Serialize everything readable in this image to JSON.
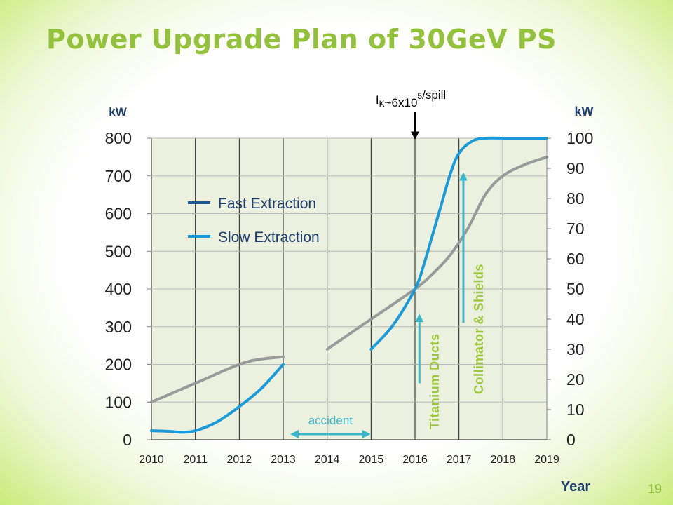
{
  "slide": {
    "title": "Power Upgrade Plan of 30GeV PS",
    "page_number": "19"
  },
  "chart_data": {
    "type": "line",
    "title": "",
    "xlabel": "Year",
    "ylabel_left": "kW",
    "ylabel_right": "kW",
    "x_ticks": [
      "2010",
      "2011",
      "2012",
      "2013",
      "2014",
      "2015",
      "2016",
      "2017",
      "2018",
      "2019"
    ],
    "ylim_left": [
      0,
      800
    ],
    "ylim_right": [
      0,
      100
    ],
    "y_ticks_left": [
      "0",
      "100",
      "200",
      "300",
      "400",
      "500",
      "600",
      "700",
      "800"
    ],
    "y_ticks_right": [
      "0",
      "10",
      "20",
      "30",
      "40",
      "50",
      "60",
      "70",
      "80",
      "90",
      "100"
    ],
    "grid": true,
    "plot_background": "#ebf1de",
    "legend": {
      "placement": "top-left",
      "entries": [
        {
          "label": "Fast Extraction",
          "color": "#1f5b99"
        },
        {
          "label": "Slow Extraction",
          "color": "#1a9ad9"
        }
      ]
    },
    "series": [
      {
        "name": "Fast Extraction",
        "axis": "left",
        "color": "#9a9a9a",
        "segments": [
          [
            [
              2010,
              100
            ],
            [
              2011,
              150
            ],
            [
              2012,
              200
            ],
            [
              2012.5,
              214
            ],
            [
              2013,
              220
            ]
          ],
          [
            [
              2014,
              240
            ],
            [
              2015,
              320
            ],
            [
              2016,
              400
            ],
            [
              2016.4,
              440
            ],
            [
              2016.8,
              490
            ],
            [
              2017.2,
              560
            ],
            [
              2017.6,
              650
            ],
            [
              2018,
              700
            ],
            [
              2018.5,
              730
            ],
            [
              2019,
              750
            ]
          ]
        ]
      },
      {
        "name": "Slow Extraction",
        "axis": "right",
        "color": "#1a9ad9",
        "segments": [
          [
            [
              2010,
              3
            ],
            [
              2010.4,
              2.8
            ],
            [
              2010.7,
              2.5
            ],
            [
              2011,
              3
            ],
            [
              2011.5,
              6
            ],
            [
              2012,
              11
            ],
            [
              2012.5,
              17
            ],
            [
              2013,
              25
            ]
          ],
          [
            [
              2015,
              30
            ],
            [
              2015.5,
              38
            ],
            [
              2016,
              50
            ],
            [
              2016.2,
              58
            ],
            [
              2016.4,
              68
            ],
            [
              2016.6,
              78
            ],
            [
              2016.8,
              88
            ],
            [
              2017,
              95
            ],
            [
              2017.3,
              99
            ],
            [
              2017.6,
              100
            ],
            [
              2018,
              100
            ],
            [
              2019,
              100
            ]
          ]
        ]
      }
    ],
    "annotations": [
      {
        "text": "accident",
        "color": "#3ab7c8",
        "arrow": "double",
        "x_from": 2013.2,
        "x_to": 2014.95,
        "y_left": 15
      },
      {
        "text": "Titanium Ducts",
        "color": "#9dc83b",
        "arrow_color": "#3ab7c8",
        "x": 2016.1,
        "y_from_left": 150,
        "y_to_left": 330
      },
      {
        "text": "Collimator & Shields",
        "color": "#9dc83b",
        "arrow_color": "#3ab7c8",
        "x": 2017.1,
        "y_from_left": 310,
        "y_to_left": 705
      },
      {
        "text_base": "I",
        "text_sub": "K",
        "text_mid": "~6x10",
        "text_sup": "5",
        "text_end": "/spill",
        "color": "#000000",
        "x": 2016,
        "arrow": "down"
      }
    ]
  }
}
